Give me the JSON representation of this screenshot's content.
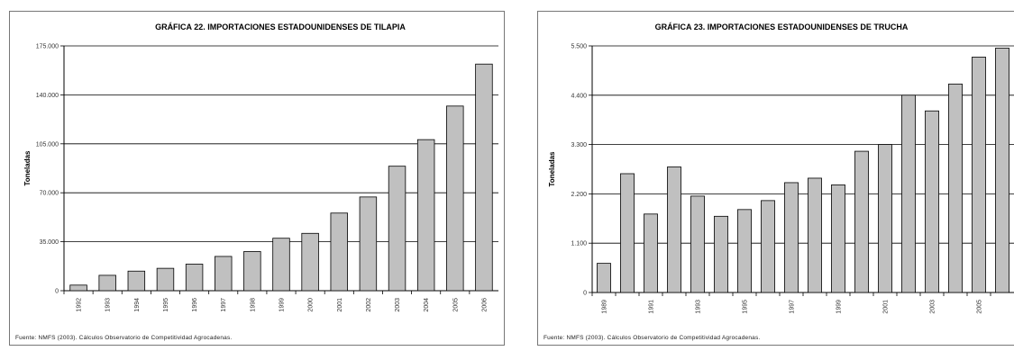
{
  "chart_data": [
    {
      "type": "bar",
      "title": "GRÁFICA 22.   IMPORTACIONES ESTADOUNIDENSES DE TILAPIA",
      "ylabel": "Toneladas",
      "xlabel": "",
      "categories": [
        "1992",
        "1993",
        "1994",
        "1995",
        "1996",
        "1997",
        "1998",
        "1999",
        "2000",
        "2001",
        "2002",
        "2003",
        "2004",
        "2005",
        "2006"
      ],
      "values": [
        4000,
        11000,
        14000,
        16000,
        19000,
        24500,
        28000,
        37500,
        41000,
        55500,
        67000,
        89000,
        108000,
        132000,
        162000
      ],
      "yticks": [
        "0",
        "35.000",
        "70.000",
        "105.000",
        "140.000",
        "175.000"
      ],
      "ylim": [
        0,
        175000
      ],
      "grid": true,
      "bar_color": "#c0c0c0",
      "source": "Fuente:  NMFS (2003). Cálculos Observatorio de Competitividad Agrocadenas."
    },
    {
      "type": "bar",
      "title": "GRÁFICA 23.   IMPORTACIONES ESTADOUNIDENSES DE TRUCHA",
      "ylabel": "Toneladas",
      "xlabel": "",
      "categories": [
        "1989",
        "1990",
        "1991",
        "1992",
        "1993",
        "1994",
        "1995",
        "1996",
        "1997",
        "1998",
        "1999",
        "2000",
        "2001",
        "2002",
        "2003",
        "2004",
        "2005",
        "2006"
      ],
      "xtick_labels": [
        "1989",
        "",
        "1991",
        "",
        "1993",
        "",
        "1995",
        "",
        "1997",
        "",
        "1999",
        "",
        "2001",
        "",
        "2003",
        "",
        "2005",
        ""
      ],
      "values": [
        650,
        2650,
        1750,
        2800,
        2150,
        1700,
        1850,
        2050,
        2450,
        2550,
        2400,
        3150,
        3300,
        4400,
        4050,
        4650,
        5250,
        5450
      ],
      "yticks": [
        "0",
        "1.100",
        "2.200",
        "3.300",
        "4.400",
        "5.500"
      ],
      "ylim": [
        0,
        5500
      ],
      "grid": true,
      "bar_color": "#c0c0c0",
      "source": "Fuente:  NMFS (2003). Cálculos Observatorio de Competitividad Agrocadenas."
    }
  ]
}
